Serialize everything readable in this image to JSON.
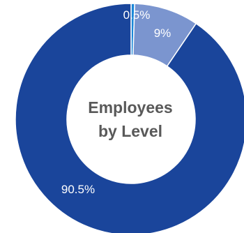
{
  "chart_data": {
    "type": "pie",
    "title": "",
    "center_label_lines": [
      "Employees",
      "by Level"
    ],
    "slices": [
      {
        "label": "0.5%",
        "value": 0.5,
        "color": "#1a87d8"
      },
      {
        "label": "9%",
        "value": 9,
        "color": "#7b95cf"
      },
      {
        "label": "90.5%",
        "value": 90.5,
        "color": "#1a459b"
      }
    ],
    "legend": "none"
  }
}
